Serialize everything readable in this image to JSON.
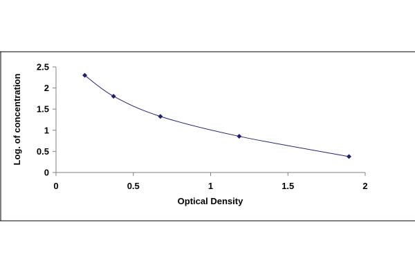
{
  "chart_data": {
    "type": "scatter",
    "title": "",
    "xlabel": "Optical Density",
    "ylabel": "Log. of concentration",
    "xlim": [
      0,
      2
    ],
    "ylim": [
      0,
      2.5
    ],
    "x_ticks": [
      "0",
      "0.5",
      "1",
      "1.5",
      "2"
    ],
    "y_ticks": [
      "0",
      "0.5",
      "1",
      "1.5",
      "2",
      "2.5"
    ],
    "grid": false,
    "legend": "none",
    "series": [
      {
        "marker": "diamond",
        "color": "#1f1f6e",
        "trendline": "smooth curve",
        "points": [
          {
            "x": 0.186,
            "y": 2.301
          },
          {
            "x": 0.372,
            "y": 1.806
          },
          {
            "x": 0.675,
            "y": 1.328
          },
          {
            "x": 1.185,
            "y": 0.857
          },
          {
            "x": 1.895,
            "y": 0.377
          }
        ]
      }
    ]
  }
}
